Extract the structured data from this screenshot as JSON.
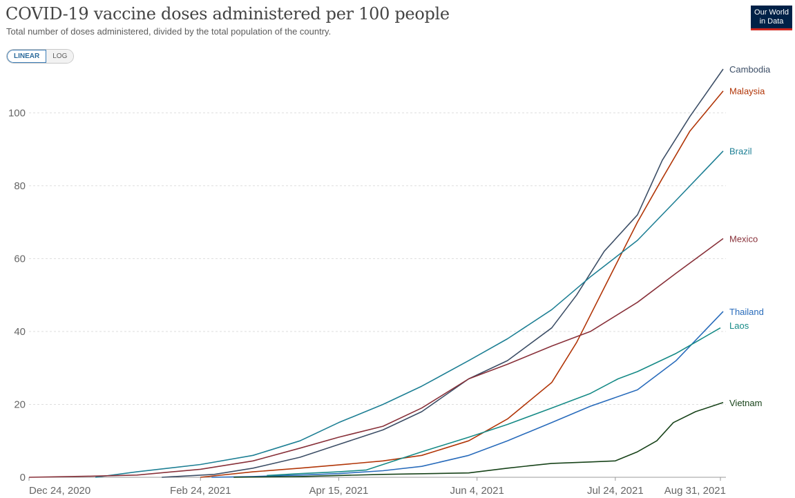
{
  "header": {
    "title": "COVID-19 vaccine doses administered per 100 people",
    "subtitle": "Total number of doses administered, divided by the total population of the country.",
    "logo_line1": "Our World",
    "logo_line2": "in Data"
  },
  "scale_toggle": {
    "linear": "LINEAR",
    "log": "LOG",
    "selected": "LINEAR"
  },
  "chart_data": {
    "type": "line",
    "title": "COVID-19 vaccine doses administered per 100 people",
    "subtitle": "Total number of doses administered, divided by the total population of the country.",
    "xlim": [
      "2020-12-24",
      "2021-09-02"
    ],
    "ylim": [
      0,
      112
    ],
    "yticks": [
      0,
      20,
      40,
      60,
      80,
      100
    ],
    "xticks": [
      {
        "date": "2020-12-24",
        "label": "Dec 24, 2020"
      },
      {
        "date": "2021-02-24",
        "label": "Feb 24, 2021"
      },
      {
        "date": "2021-04-15",
        "label": "Apr 15, 2021"
      },
      {
        "date": "2021-06-04",
        "label": "Jun 4, 2021"
      },
      {
        "date": "2021-07-24",
        "label": "Jul 24, 2021"
      },
      {
        "date": "2021-08-31",
        "label": "Aug 31, 2021"
      }
    ],
    "grid": "horizontal-dashed",
    "legend": "line-end labels",
    "series": [
      {
        "name": "Cambodia",
        "color": "#3c4e66",
        "points": [
          [
            "2021-02-10",
            0
          ],
          [
            "2021-03-01",
            0.8
          ],
          [
            "2021-03-15",
            2.5
          ],
          [
            "2021-04-01",
            5.5
          ],
          [
            "2021-04-15",
            9
          ],
          [
            "2021-05-01",
            13
          ],
          [
            "2021-05-15",
            18
          ],
          [
            "2021-06-01",
            27
          ],
          [
            "2021-06-15",
            32
          ],
          [
            "2021-07-01",
            41
          ],
          [
            "2021-07-10",
            50
          ],
          [
            "2021-07-20",
            62
          ],
          [
            "2021-08-01",
            72
          ],
          [
            "2021-08-10",
            87
          ],
          [
            "2021-08-20",
            99
          ],
          [
            "2021-09-01",
            112
          ]
        ]
      },
      {
        "name": "Malaysia",
        "color": "#b13507",
        "points": [
          [
            "2021-02-24",
            0
          ],
          [
            "2021-03-15",
            1.5
          ],
          [
            "2021-04-01",
            2.5
          ],
          [
            "2021-04-15",
            3.4
          ],
          [
            "2021-05-01",
            4.5
          ],
          [
            "2021-05-15",
            6
          ],
          [
            "2021-06-01",
            10
          ],
          [
            "2021-06-15",
            16
          ],
          [
            "2021-07-01",
            26
          ],
          [
            "2021-07-10",
            37
          ],
          [
            "2021-07-20",
            52
          ],
          [
            "2021-08-01",
            70
          ],
          [
            "2021-08-10",
            82
          ],
          [
            "2021-08-20",
            95
          ],
          [
            "2021-09-01",
            106
          ]
        ]
      },
      {
        "name": "Brazil",
        "color": "#1d7f94",
        "points": [
          [
            "2021-01-17",
            0
          ],
          [
            "2021-02-01",
            1.5
          ],
          [
            "2021-02-24",
            3.5
          ],
          [
            "2021-03-15",
            6
          ],
          [
            "2021-04-01",
            10
          ],
          [
            "2021-04-15",
            15
          ],
          [
            "2021-05-01",
            20
          ],
          [
            "2021-05-15",
            25
          ],
          [
            "2021-06-01",
            32
          ],
          [
            "2021-06-15",
            38
          ],
          [
            "2021-07-01",
            46
          ],
          [
            "2021-07-15",
            55
          ],
          [
            "2021-08-01",
            65
          ],
          [
            "2021-08-15",
            76
          ],
          [
            "2021-09-01",
            89.5
          ]
        ]
      },
      {
        "name": "Mexico",
        "color": "#883039",
        "points": [
          [
            "2020-12-24",
            0
          ],
          [
            "2021-01-15",
            0.3
          ],
          [
            "2021-02-01",
            0.6
          ],
          [
            "2021-02-24",
            2.2
          ],
          [
            "2021-03-15",
            4.5
          ],
          [
            "2021-04-01",
            8
          ],
          [
            "2021-04-15",
            11
          ],
          [
            "2021-05-01",
            14
          ],
          [
            "2021-05-15",
            19
          ],
          [
            "2021-06-01",
            27
          ],
          [
            "2021-06-15",
            31
          ],
          [
            "2021-07-01",
            36
          ],
          [
            "2021-07-15",
            40
          ],
          [
            "2021-08-01",
            48
          ],
          [
            "2021-08-15",
            56
          ],
          [
            "2021-09-01",
            65.5
          ]
        ]
      },
      {
        "name": "Thailand",
        "color": "#286bbb",
        "points": [
          [
            "2021-02-28",
            0
          ],
          [
            "2021-03-15",
            0.2
          ],
          [
            "2021-04-01",
            0.6
          ],
          [
            "2021-04-15",
            1
          ],
          [
            "2021-05-01",
            1.8
          ],
          [
            "2021-05-15",
            3
          ],
          [
            "2021-06-01",
            6
          ],
          [
            "2021-06-15",
            10
          ],
          [
            "2021-07-01",
            15
          ],
          [
            "2021-07-15",
            19.5
          ],
          [
            "2021-08-01",
            24
          ],
          [
            "2021-08-15",
            32
          ],
          [
            "2021-09-01",
            45.5
          ]
        ]
      },
      {
        "name": "Laos",
        "color": "#158a86",
        "points": [
          [
            "2021-03-20",
            0.5
          ],
          [
            "2021-04-01",
            1
          ],
          [
            "2021-04-15",
            1.5
          ],
          [
            "2021-04-25",
            2
          ],
          [
            "2021-05-05",
            4.5
          ],
          [
            "2021-05-15",
            7
          ],
          [
            "2021-06-01",
            11
          ],
          [
            "2021-06-15",
            14.5
          ],
          [
            "2021-07-01",
            19
          ],
          [
            "2021-07-15",
            23
          ],
          [
            "2021-07-25",
            27
          ],
          [
            "2021-08-01",
            29
          ],
          [
            "2021-08-15",
            34
          ],
          [
            "2021-08-31",
            41
          ]
        ]
      },
      {
        "name": "Vietnam",
        "color": "#164218",
        "points": [
          [
            "2021-03-08",
            0
          ],
          [
            "2021-04-01",
            0.2
          ],
          [
            "2021-05-01",
            0.8
          ],
          [
            "2021-06-01",
            1.2
          ],
          [
            "2021-06-15",
            2.5
          ],
          [
            "2021-07-01",
            3.8
          ],
          [
            "2021-07-15",
            4.2
          ],
          [
            "2021-07-24",
            4.5
          ],
          [
            "2021-08-01",
            7
          ],
          [
            "2021-08-08",
            10
          ],
          [
            "2021-08-14",
            15
          ],
          [
            "2021-08-22",
            18
          ],
          [
            "2021-09-01",
            20.5
          ]
        ]
      }
    ]
  }
}
